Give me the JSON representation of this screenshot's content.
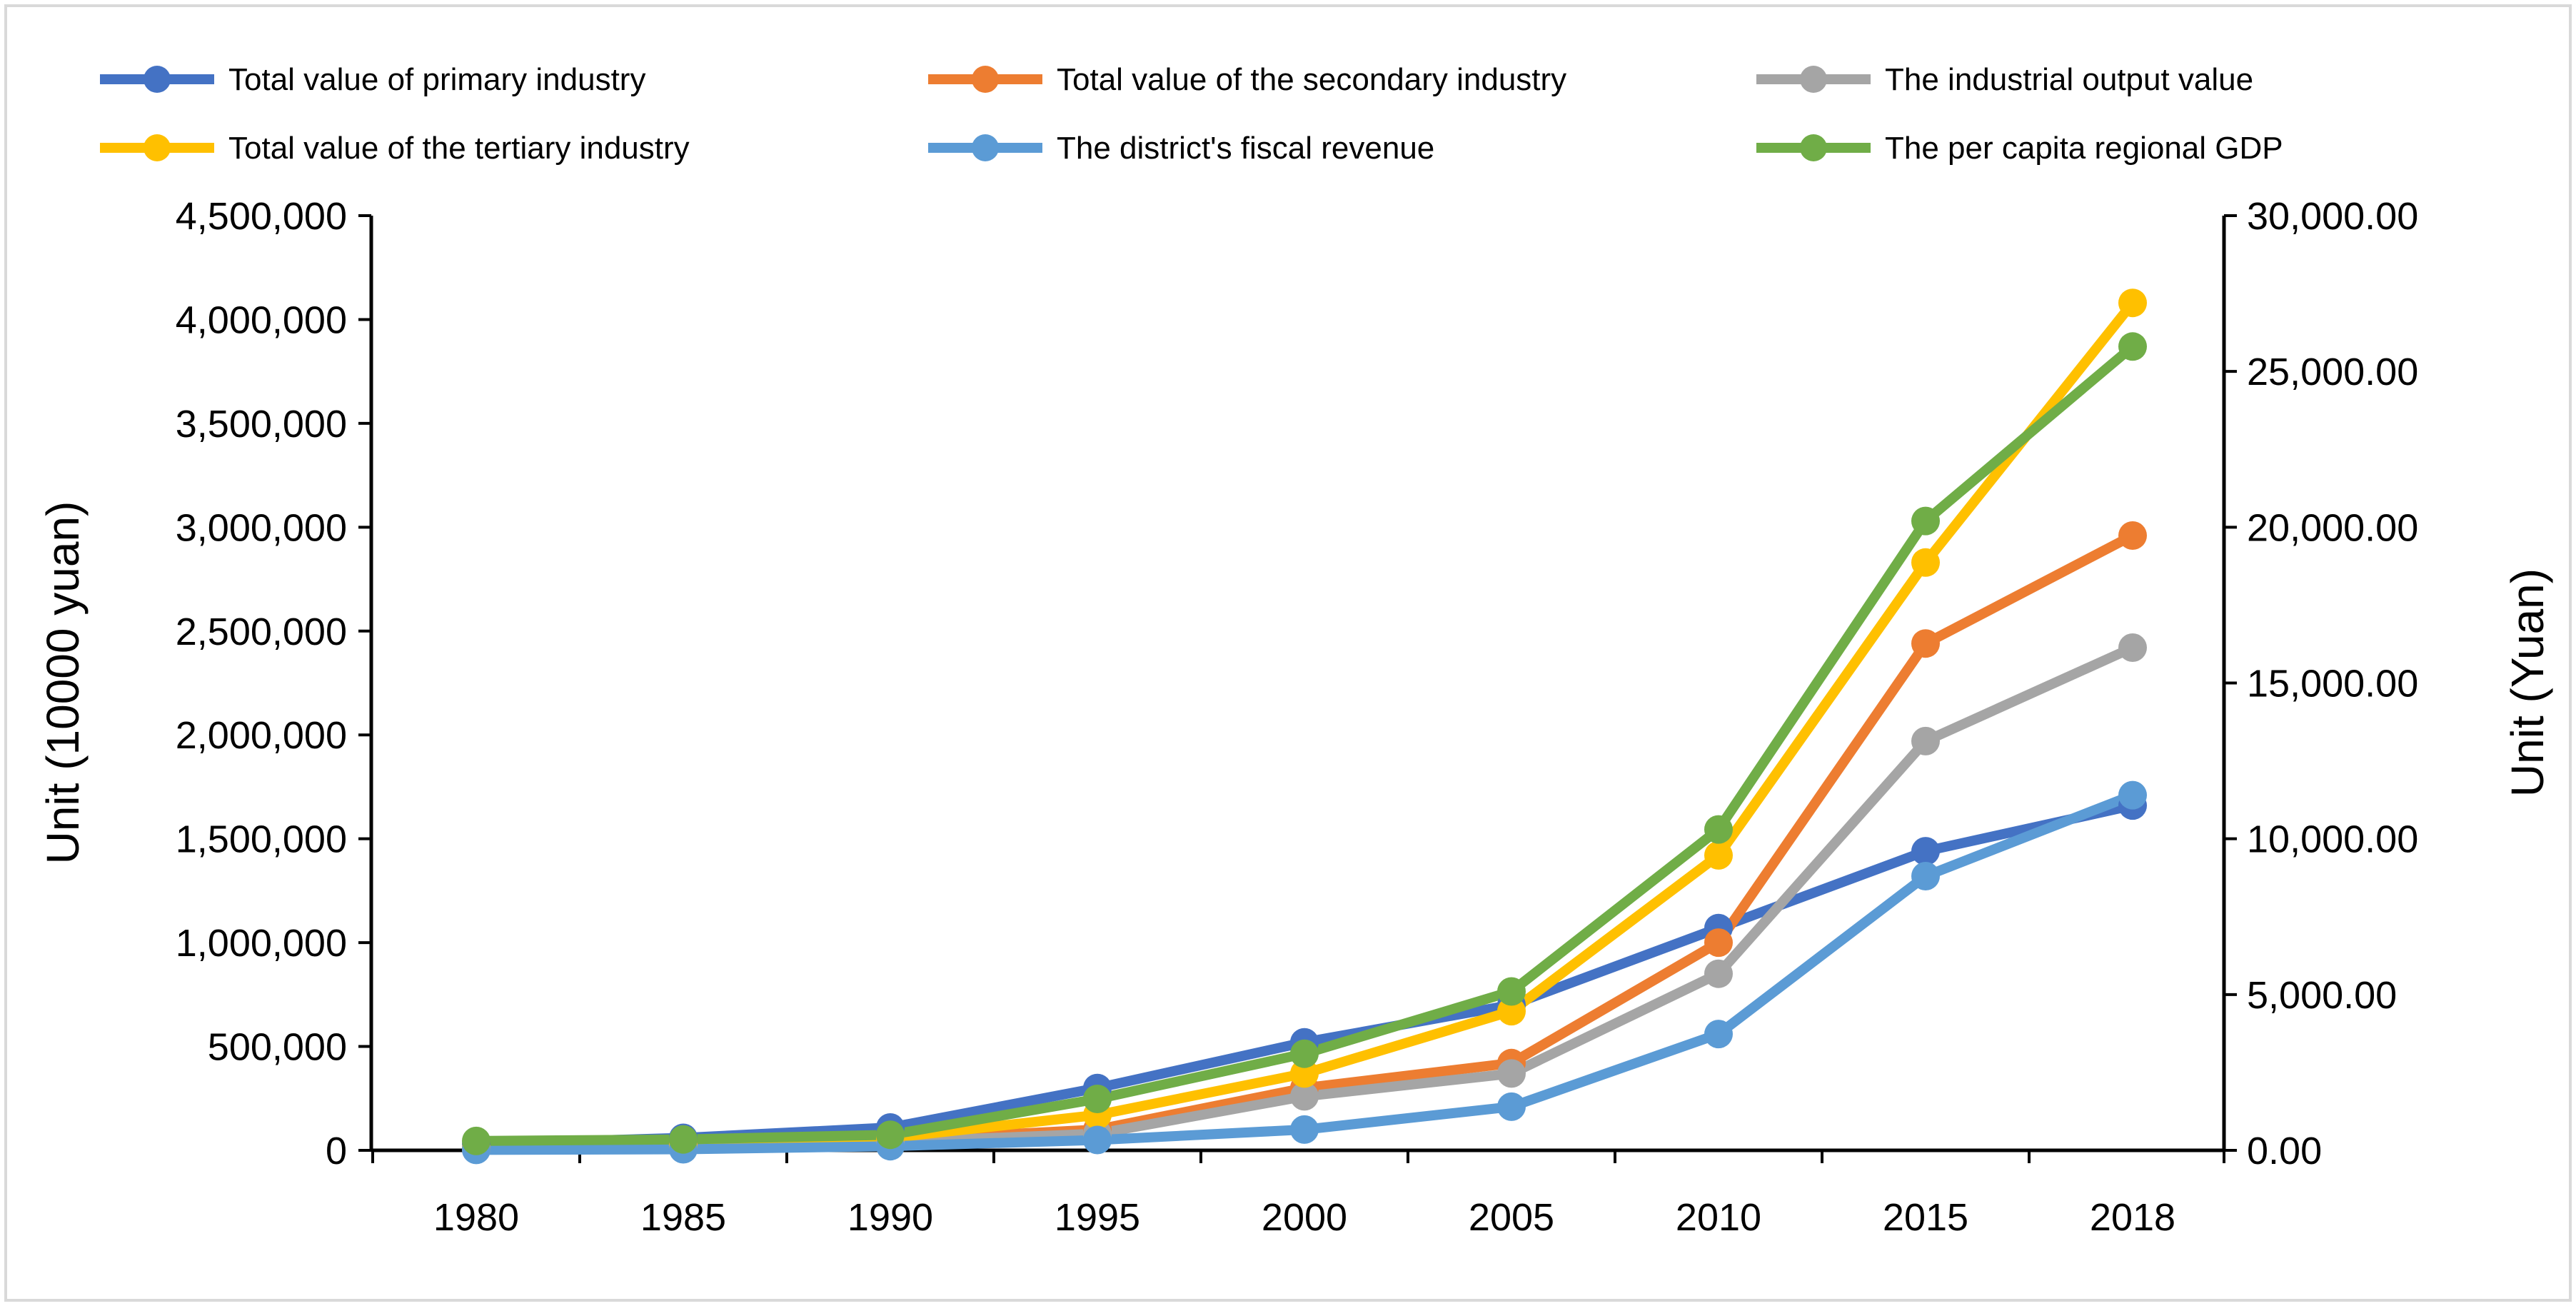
{
  "chart_data": {
    "type": "line",
    "title": "",
    "x": [
      "1980",
      "1985",
      "1990",
      "1995",
      "2000",
      "2005",
      "2010",
      "2015",
      "2018"
    ],
    "ylabel_left": "Unit (10000 yuan)",
    "ylabel_right": "Unit (Yuan)",
    "ylim_left": [
      0,
      4500000
    ],
    "ylim_right": [
      0,
      30000
    ],
    "yticks_left": [
      "0",
      "500,000",
      "1,000,000",
      "1,500,000",
      "2,000,000",
      "2,500,000",
      "3,000,000",
      "3,500,000",
      "4,000,000",
      "4,500,000"
    ],
    "yticks_right": [
      "0.00",
      "5,000.00",
      "10,000.00",
      "15,000.00",
      "20,000.00",
      "25,000.00",
      "30,000.00"
    ],
    "grid": false,
    "legend_position": "top",
    "series": [
      {
        "name": "Total value of primary industry",
        "axis": "left",
        "color": "#4472C4",
        "values": [
          30000,
          60000,
          110000,
          300000,
          520000,
          700000,
          1070000,
          1440000,
          1660000
        ]
      },
      {
        "name": "Total value of the secondary industry",
        "axis": "left",
        "color": "#ED7D31",
        "values": [
          10000,
          25000,
          50000,
          100000,
          300000,
          420000,
          1000000,
          2440000,
          2960000
        ]
      },
      {
        "name": "The industrial output value",
        "axis": "left",
        "color": "#A5A5A5",
        "values": [
          8000,
          20000,
          40000,
          80000,
          260000,
          370000,
          850000,
          1970000,
          2420000
        ]
      },
      {
        "name": "Total value of the tertiary industry",
        "axis": "left",
        "color": "#FFC000",
        "values": [
          5000,
          15000,
          60000,
          170000,
          370000,
          670000,
          1420000,
          2830000,
          4080000
        ]
      },
      {
        "name": "The district's fiscal revenue",
        "axis": "left",
        "color": "#5B9BD5",
        "values": [
          2000,
          5000,
          20000,
          50000,
          100000,
          210000,
          560000,
          1320000,
          1710000
        ]
      },
      {
        "name": "The per capita regional GDP",
        "axis": "right",
        "color": "#70AD47",
        "values": [
          300,
          350,
          500,
          1650,
          3100,
          5100,
          10300,
          20200,
          25800
        ]
      }
    ]
  }
}
